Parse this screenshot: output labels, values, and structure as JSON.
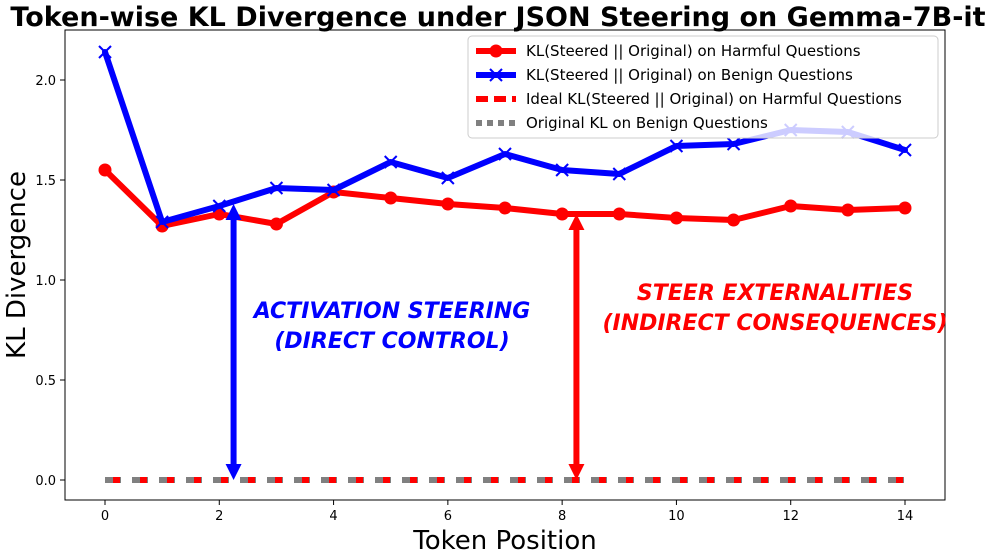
{
  "chart_data": {
    "type": "line",
    "title": "Token-wise KL Divergence under JSON Steering on Gemma-7B-it",
    "xlabel": "Token Position",
    "ylabel": "KL Divergence",
    "xlim": [
      -0.7,
      14.7
    ],
    "ylim": [
      -0.1,
      2.25
    ],
    "xticks": [
      0,
      2,
      4,
      6,
      8,
      10,
      12,
      14
    ],
    "xtick_labels": [
      "0",
      "2",
      "4",
      "6",
      "8",
      "10",
      "12",
      "14"
    ],
    "yticks": [
      0.0,
      0.5,
      1.0,
      1.5,
      2.0
    ],
    "ytick_labels": [
      "0.0",
      "0.5",
      "1.0",
      "1.5",
      "2.0"
    ],
    "grid": false,
    "legend_position": "top-right",
    "x": [
      0,
      1,
      2,
      3,
      4,
      5,
      6,
      7,
      8,
      9,
      10,
      11,
      12,
      13,
      14
    ],
    "series": [
      {
        "name": "KL(Steered || Original) on Harmful Questions",
        "color": "#ff0000",
        "style": "solid",
        "marker": "circle",
        "values": [
          1.55,
          1.27,
          1.33,
          1.28,
          1.44,
          1.41,
          1.38,
          1.36,
          1.33,
          1.33,
          1.31,
          1.3,
          1.37,
          1.35,
          1.36
        ]
      },
      {
        "name": "KL(Steered || Original) on Benign Questions",
        "color": "#0000ff",
        "style": "solid",
        "marker": "x",
        "values": [
          2.14,
          1.29,
          1.37,
          1.46,
          1.45,
          1.59,
          1.51,
          1.63,
          1.55,
          1.53,
          1.67,
          1.68,
          1.75,
          1.74,
          1.65
        ]
      },
      {
        "name": "Ideal KL(Steered || Original) on Harmful Questions",
        "color": "#ff0000",
        "style": "dashed",
        "marker": "none",
        "values": [
          0,
          0,
          0,
          0,
          0,
          0,
          0,
          0,
          0,
          0,
          0,
          0,
          0,
          0,
          0
        ]
      },
      {
        "name": "Original KL on Benign Questions",
        "color": "#808080",
        "style": "dotted",
        "marker": "none",
        "values": [
          0,
          0,
          0,
          0,
          0,
          0,
          0,
          0,
          0,
          0,
          0,
          0,
          0,
          0,
          0
        ]
      }
    ],
    "annotations": [
      {
        "name": "activation-steering",
        "lines": [
          "ACTIVATION STEERING",
          "(DIRECT CONTROL)"
        ],
        "color": "#0000ff",
        "arrow_x": 2.25,
        "arrow_y_range": [
          0.0,
          1.38
        ]
      },
      {
        "name": "steer-externalities",
        "lines": [
          "STEER EXTERNALITIES",
          "(INDIRECT CONSEQUENCES)"
        ],
        "color": "#ff0000",
        "arrow_x": 8.25,
        "arrow_y_range": [
          0.0,
          1.33
        ]
      }
    ]
  }
}
